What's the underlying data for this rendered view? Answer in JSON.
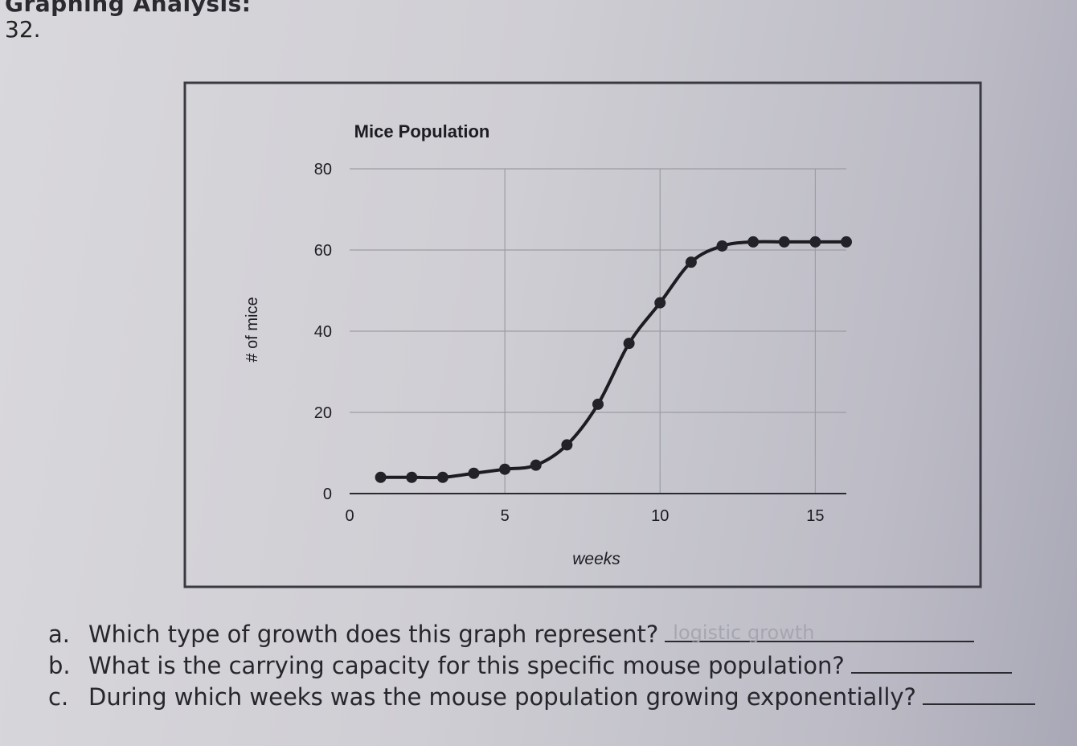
{
  "header": {
    "section_title": "Graphing Analysis:",
    "question_number": "32."
  },
  "chart_data": {
    "type": "line",
    "title": "Mice Population",
    "xlabel": "weeks",
    "ylabel": "# of mice",
    "xlim": [
      0,
      16
    ],
    "ylim": [
      0,
      80
    ],
    "x_ticks": [
      0,
      5,
      10,
      15
    ],
    "y_ticks": [
      0,
      20,
      40,
      60,
      80
    ],
    "grid": true,
    "series": [
      {
        "x": [
          1,
          2,
          3,
          4,
          5,
          6,
          7,
          8,
          9,
          10,
          11,
          12,
          13,
          14,
          15,
          16
        ],
        "values": [
          4,
          4,
          4,
          5,
          6,
          7,
          12,
          22,
          37,
          47,
          57,
          61,
          62,
          62,
          62,
          62
        ]
      }
    ],
    "colors": {
      "line": "#1c1c22",
      "marker": "#222228",
      "grid": "#9c9ca4"
    }
  },
  "questions": [
    {
      "letter": "a.",
      "text": "Which type of growth does this graph represent?",
      "answer": "logistic growth"
    },
    {
      "letter": "b.",
      "text": "What is the carrying capacity for this specific mouse population?",
      "answer": ""
    },
    {
      "letter": "c.",
      "text": "During which weeks was the mouse population growing exponentially?",
      "answer": ""
    }
  ]
}
